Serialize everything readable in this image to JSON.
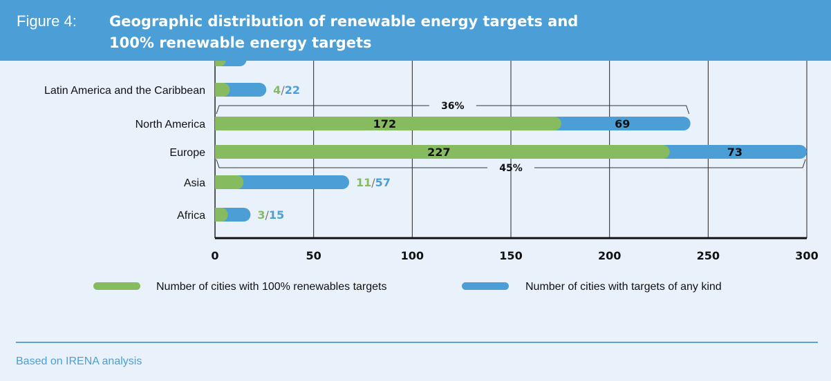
{
  "header": {
    "figure_label": "Figure 4:",
    "title_line1": "Geographic distribution of renewable energy targets and",
    "title_line2": "100% renewable energy targets"
  },
  "chart_data": {
    "type": "bar",
    "orientation": "horizontal",
    "stacked": true,
    "title": "Geographic distribution of renewable energy targets and 100% renewable energy targets",
    "xlabel": "",
    "ylabel": "",
    "xlim": [
      0,
      300
    ],
    "xticks": [
      "0",
      "50",
      "100",
      "150",
      "200",
      "250",
      "300"
    ],
    "grid": "vertical",
    "legend_position": "bottom",
    "categories": [
      "",
      "Latin America and the Caribbean",
      "North America",
      "Europe",
      "Asia",
      "Africa"
    ],
    "series": [
      {
        "name": "Number of cities with 100% renewables targets",
        "color": "#86bc5f",
        "values": [
          2,
          4,
          172,
          227,
          11,
          3
        ]
      },
      {
        "name": "Number of cities with targets of any kind",
        "color": "#4b9ed6",
        "values": [
          14,
          22,
          69,
          73,
          57,
          15
        ]
      }
    ],
    "data_labels": [
      {
        "category": "Latin America and the Caribbean",
        "green": "4",
        "blue": "22",
        "style": "outside"
      },
      {
        "category": "North America",
        "green": "172",
        "blue": "69",
        "style": "inside"
      },
      {
        "category": "Europe",
        "green": "227",
        "blue": "73",
        "style": "inside"
      },
      {
        "category": "Asia",
        "green": "11",
        "blue": "57",
        "style": "outside"
      },
      {
        "category": "Africa",
        "green": "3",
        "blue": "15",
        "style": "outside"
      }
    ],
    "annotations": [
      {
        "text": "36%",
        "category": "North America",
        "position": "above"
      },
      {
        "text": "45%",
        "category": "Europe",
        "position": "below"
      }
    ]
  },
  "footer": {
    "source": "Based on IRENA analysis"
  }
}
